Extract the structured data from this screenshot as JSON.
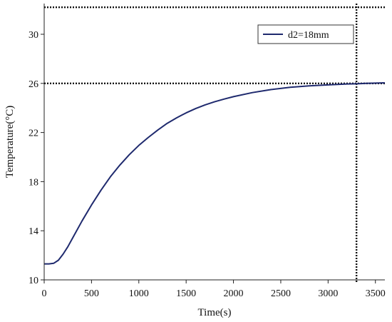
{
  "chart_data": {
    "type": "line",
    "xlabel": "Time(s)",
    "ylabel": "Temperature(°C)",
    "xlim": [
      0,
      3600
    ],
    "ylim": [
      10,
      32.5
    ],
    "xticks": [
      0,
      500,
      1000,
      1500,
      2000,
      2500,
      3000,
      3500
    ],
    "yticks": [
      10,
      14,
      18,
      22,
      26,
      30
    ],
    "grid": false,
    "legend_position": "top-right",
    "reference_lines": [
      {
        "orientation": "horizontal",
        "value": 32.2,
        "style": "dotted"
      },
      {
        "orientation": "horizontal",
        "value": 26,
        "style": "dotted"
      },
      {
        "orientation": "vertical",
        "value": 3300,
        "style": "dotted"
      }
    ],
    "series": [
      {
        "name": "d2=18mm",
        "color": "#1f2a6e",
        "x": [
          0,
          50,
          100,
          150,
          200,
          250,
          300,
          400,
          500,
          600,
          700,
          800,
          900,
          1000,
          1100,
          1200,
          1300,
          1400,
          1500,
          1600,
          1700,
          1800,
          1900,
          2000,
          2200,
          2400,
          2600,
          2800,
          3000,
          3200,
          3300,
          3400,
          3600
        ],
        "y": [
          11.3,
          11.3,
          11.35,
          11.6,
          12.1,
          12.7,
          13.4,
          14.8,
          16.1,
          17.3,
          18.4,
          19.35,
          20.2,
          20.95,
          21.6,
          22.2,
          22.75,
          23.2,
          23.6,
          23.95,
          24.25,
          24.5,
          24.72,
          24.92,
          25.25,
          25.5,
          25.68,
          25.8,
          25.88,
          25.95,
          25.97,
          26.0,
          26.05
        ]
      }
    ]
  }
}
